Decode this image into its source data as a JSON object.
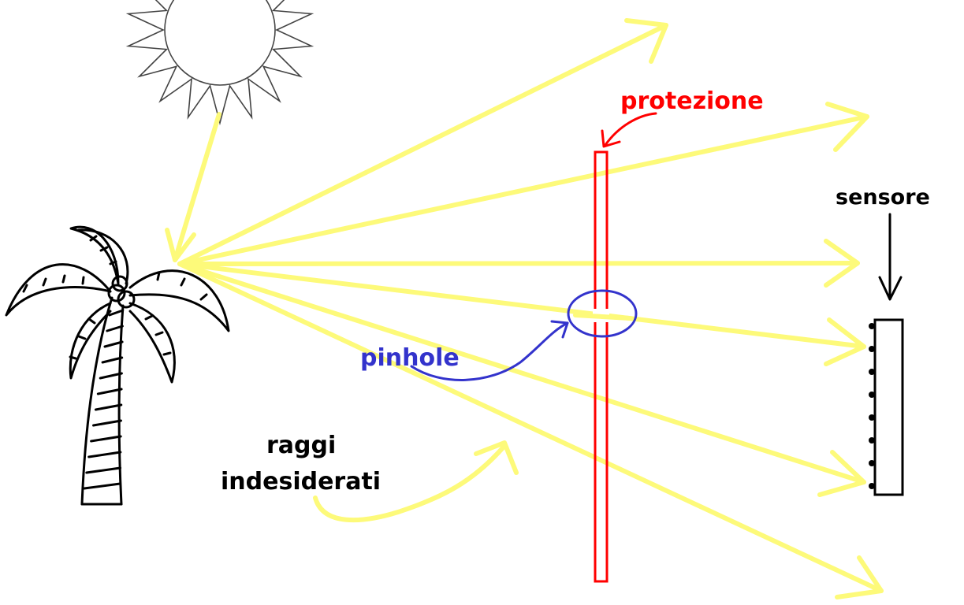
{
  "labels": {
    "protezione": "protezione",
    "sensore": "sensore",
    "pinhole": "pinhole",
    "raggi_line1": "raggi",
    "raggi_line2": "indesiderati"
  },
  "colors": {
    "ray": "#fdfa7a",
    "protezione": "#ff0000",
    "pinhole": "#3333cc",
    "ink": "#000000",
    "sun": "#444444",
    "background": "#ffffff"
  },
  "icons": [
    "sun-icon",
    "palm-tree-icon",
    "sensor-icon"
  ]
}
